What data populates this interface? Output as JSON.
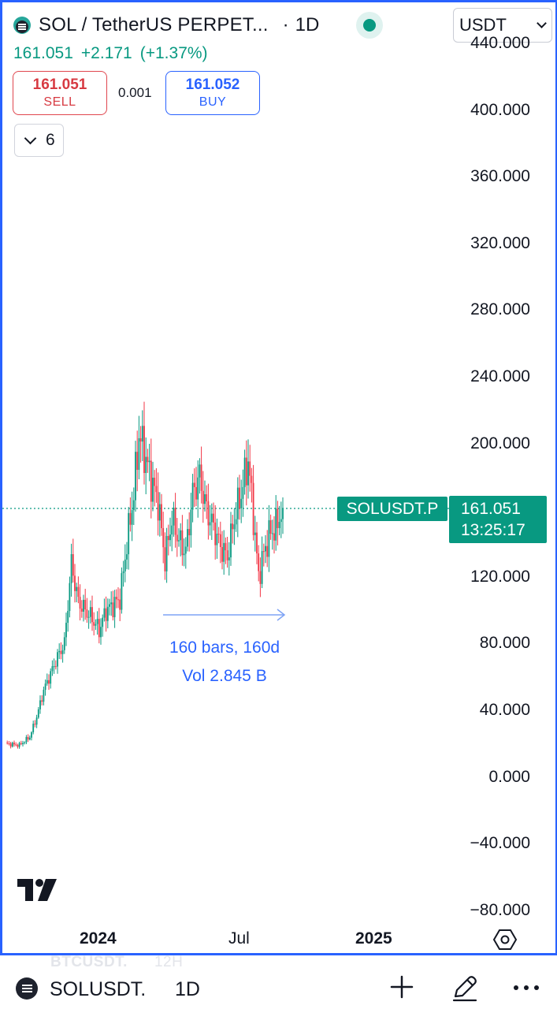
{
  "header": {
    "symbol_title": "SOL / TetherUS PERPET...",
    "separator": "·",
    "interval": "1D",
    "currency": "USDT"
  },
  "quote": {
    "last": "161.051",
    "change": "+2.171",
    "change_pct": "(+1.37%)"
  },
  "trade": {
    "sell_price": "161.051",
    "sell_label": "SELL",
    "spread": "0.001",
    "buy_price": "161.052",
    "buy_label": "BUY"
  },
  "indicators": {
    "count": "6"
  },
  "price_axis": {
    "labels": [
      "440.000",
      "400.000",
      "360.000",
      "320.000",
      "280.000",
      "240.000",
      "200.000",
      "160.000",
      "120.000",
      "80.000",
      "40.000",
      "0.000",
      "−40.000",
      "−80.000"
    ]
  },
  "time_axis": {
    "labels": [
      {
        "text": "2024",
        "bold": true
      },
      {
        "text": "Jul",
        "bold": false
      },
      {
        "text": "2025",
        "bold": true
      }
    ]
  },
  "last_price_tag": {
    "symbol": "SOLUSDT.P",
    "price": "161.051",
    "countdown": "13:25:17"
  },
  "measure": {
    "bars_text": "160 bars, 160d",
    "volume_text": "Vol 2.845 B"
  },
  "bottom_bar": {
    "ghost_symbol": "BTCUSDT.",
    "ghost_interval": "12H",
    "symbol": "SOLUSDT.",
    "interval": "1D"
  },
  "colors": {
    "up": "#089981",
    "down": "#f23645",
    "accent": "#2962ff",
    "text": "#131722"
  },
  "icons": {
    "add": "plus-icon",
    "draw": "pencil-icon",
    "more": "more-horizontal-icon",
    "settings": "hexagon-settings-icon"
  },
  "chart_data": {
    "type": "candlestick",
    "interval": "1D",
    "ylim": [
      -80,
      440
    ],
    "price_path": [
      [
        0,
        20
      ],
      [
        8,
        19
      ],
      [
        14,
        24
      ],
      [
        18,
        36
      ],
      [
        22,
        52
      ],
      [
        26,
        62
      ],
      [
        30,
        72
      ],
      [
        34,
        80
      ],
      [
        38,
        128
      ],
      [
        42,
        105
      ],
      [
        46,
        100
      ],
      [
        50,
        95
      ],
      [
        54,
        88
      ],
      [
        58,
        100
      ],
      [
        62,
        103
      ],
      [
        66,
        107
      ],
      [
        70,
        140
      ],
      [
        74,
        170
      ],
      [
        77,
        205
      ],
      [
        80,
        195
      ],
      [
        84,
        178
      ],
      [
        88,
        165
      ],
      [
        92,
        130
      ],
      [
        96,
        155
      ],
      [
        100,
        142
      ],
      [
        104,
        135
      ],
      [
        108,
        170
      ],
      [
        112,
        180
      ],
      [
        116,
        160
      ],
      [
        120,
        150
      ],
      [
        124,
        138
      ],
      [
        128,
        132
      ],
      [
        132,
        155
      ],
      [
        136,
        170
      ],
      [
        140,
        190
      ],
      [
        142,
        168
      ],
      [
        146,
        120
      ],
      [
        148,
        130
      ],
      [
        152,
        145
      ],
      [
        156,
        150
      ],
      [
        160,
        161
      ]
    ],
    "last_price": 161.051,
    "measure_bars": 160,
    "measure_days": 160,
    "measure_volume": "2.845 B"
  }
}
